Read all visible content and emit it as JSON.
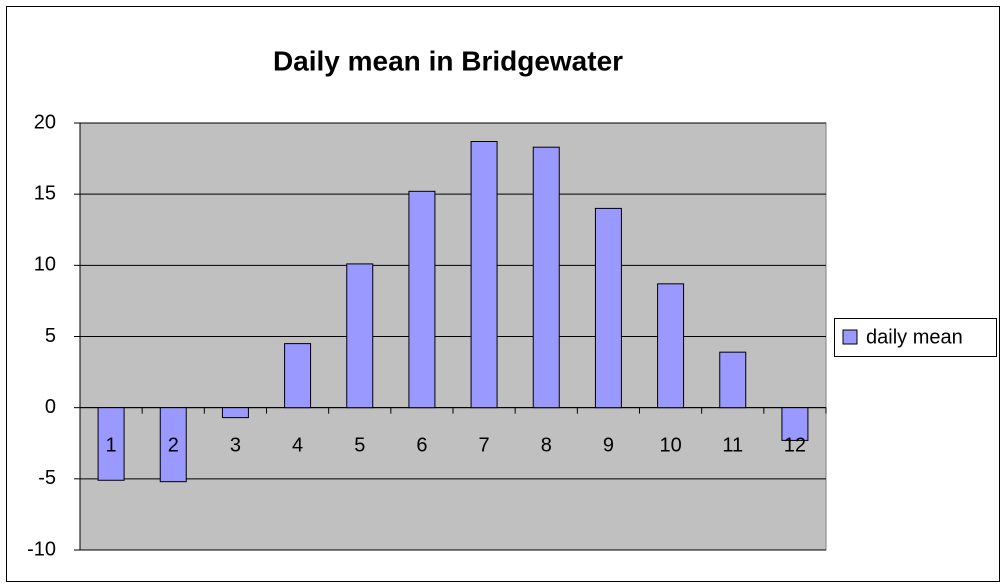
{
  "chart_data": {
    "type": "bar",
    "title": "Daily mean in Bridgewater",
    "categories": [
      1,
      2,
      3,
      4,
      5,
      6,
      7,
      8,
      9,
      10,
      11,
      12
    ],
    "series": [
      {
        "name": "daily mean",
        "color": "#9999ff",
        "values": [
          -5.1,
          -5.2,
          -0.7,
          4.5,
          10.1,
          15.2,
          18.7,
          18.3,
          14.0,
          8.7,
          3.9,
          -2.3
        ]
      }
    ],
    "ylim": [
      -10,
      20
    ],
    "yticks": [
      -10,
      -5,
      0,
      5,
      10,
      15,
      20
    ],
    "grid": true,
    "legend": "right"
  }
}
